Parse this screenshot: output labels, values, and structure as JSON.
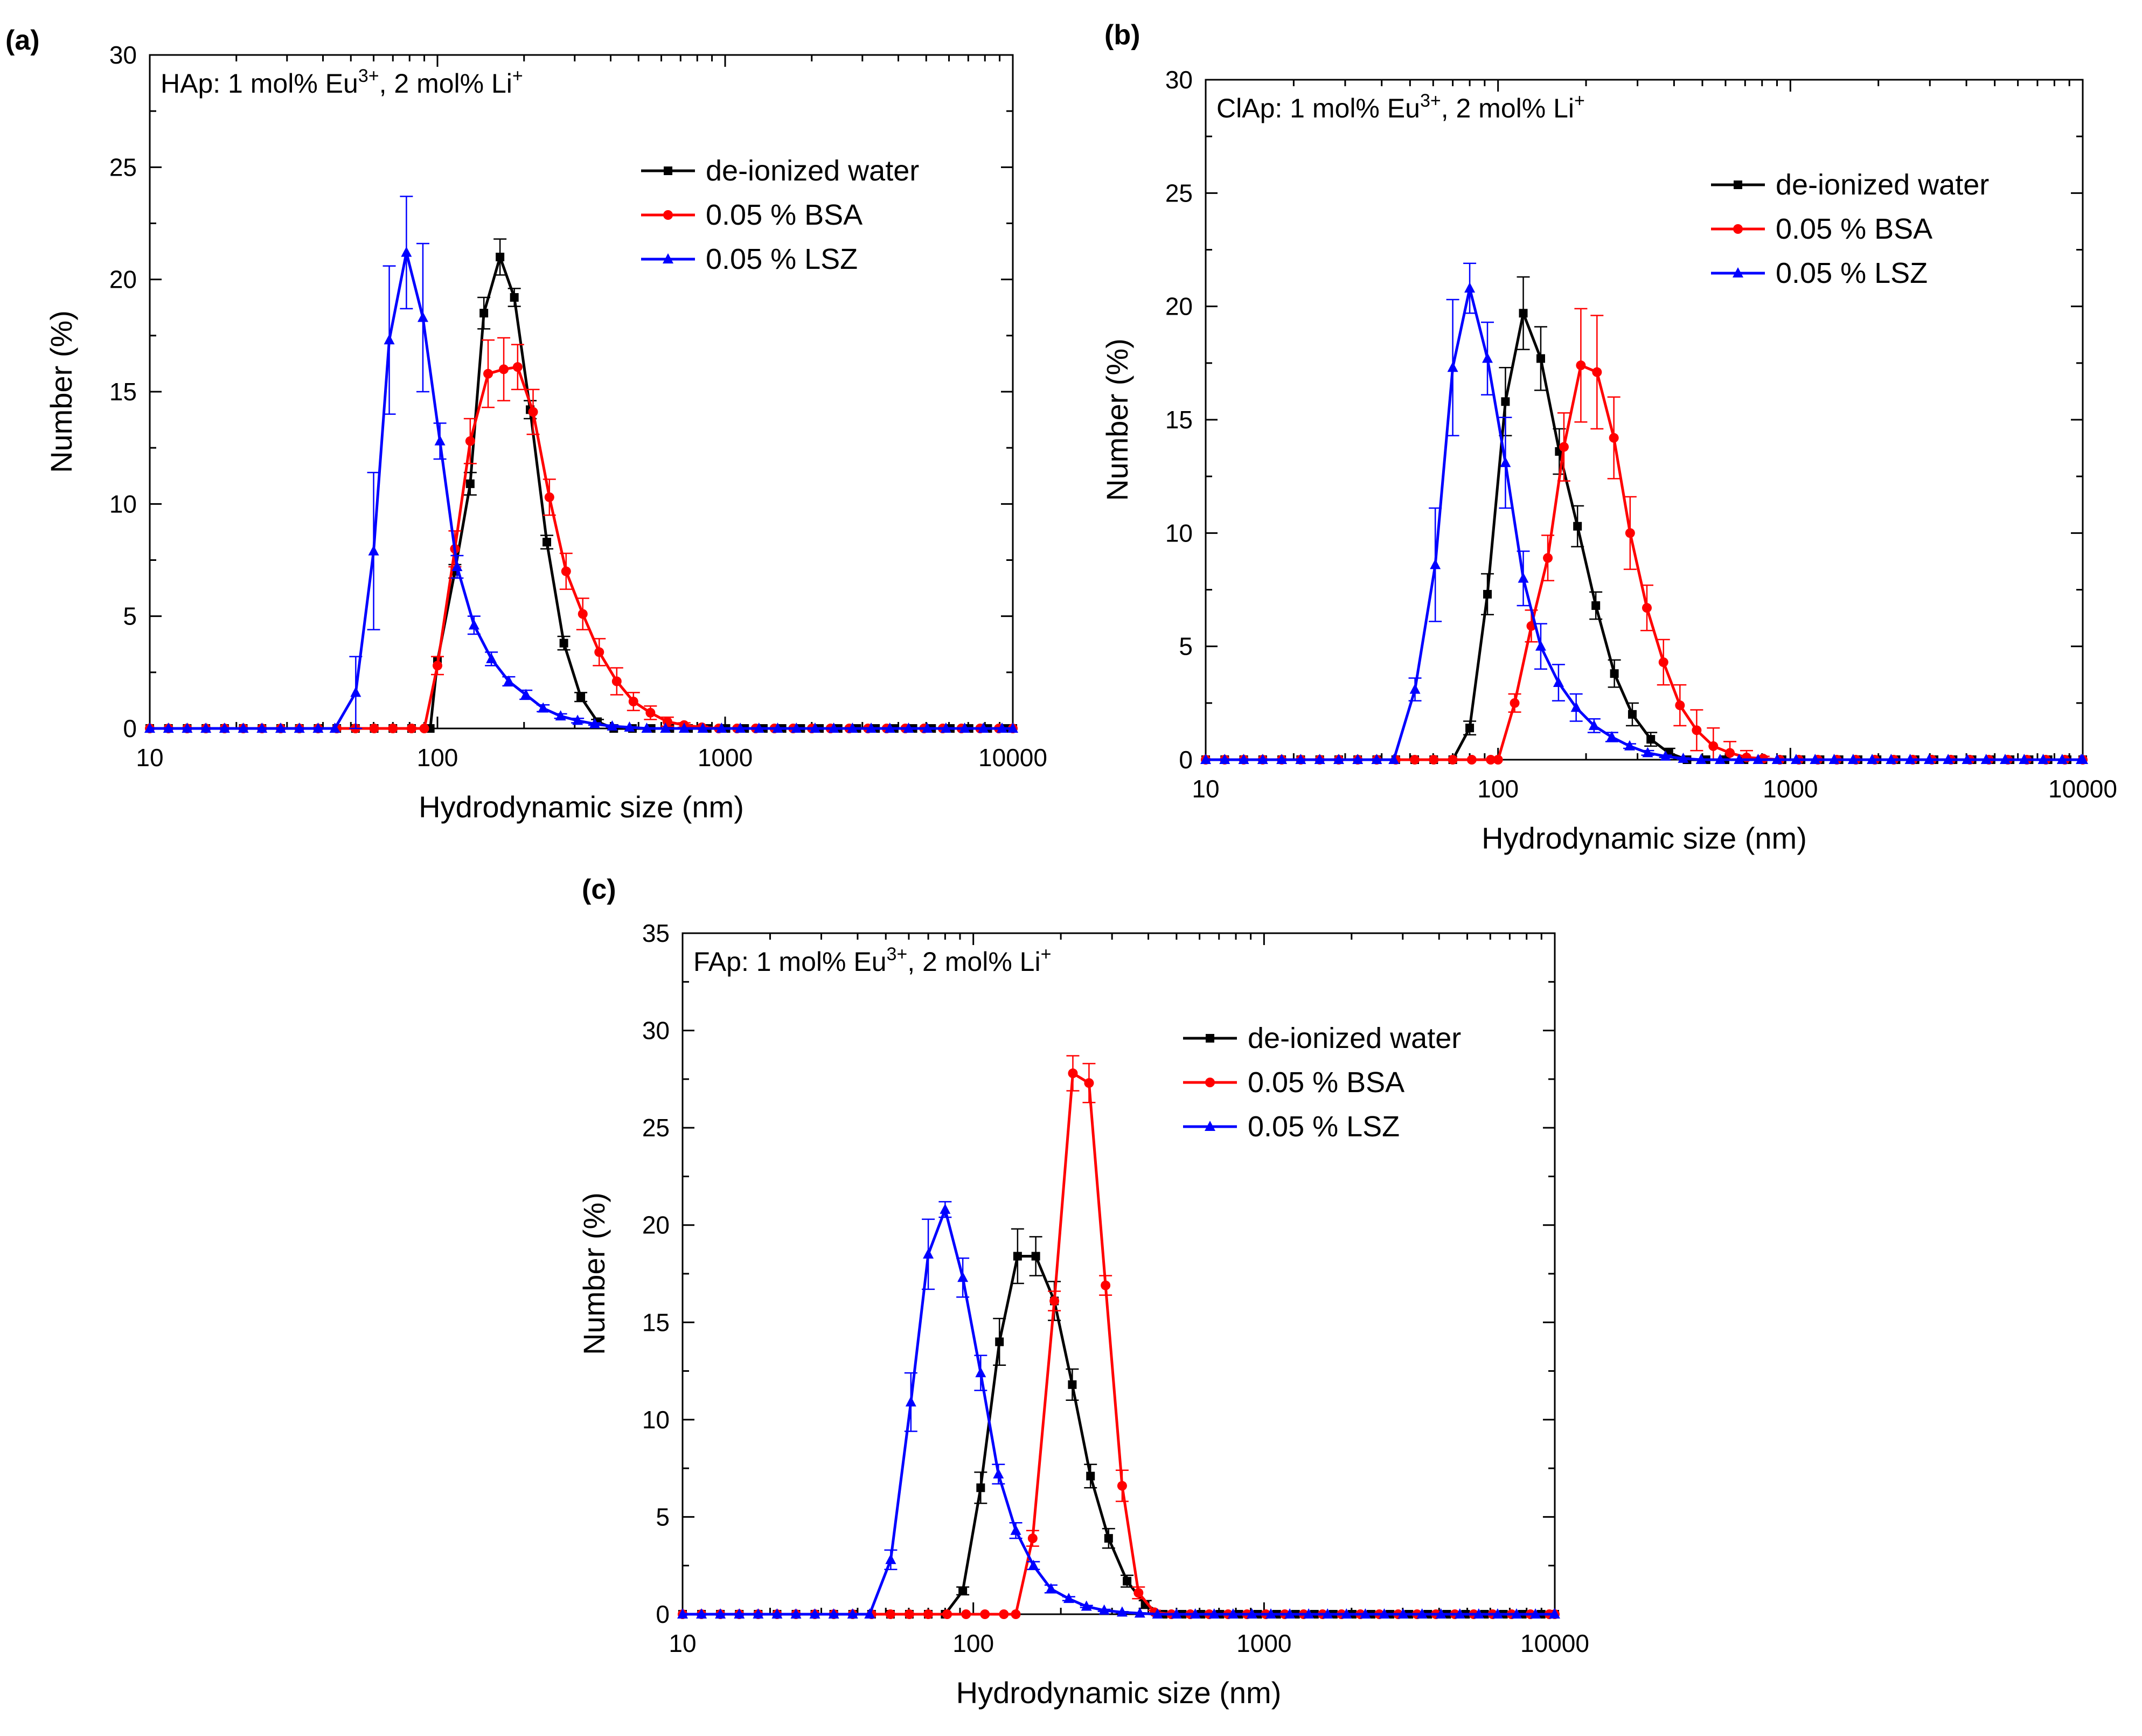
{
  "figure": {
    "legend": [
      {
        "label": "de-ionized water",
        "color": "#000000",
        "marker": "square"
      },
      {
        "label": "0.05 % BSA",
        "color": "#ff0000",
        "marker": "circle"
      },
      {
        "label": "0.05 % LSZ",
        "color": "#0000ff",
        "marker": "triangle"
      }
    ]
  },
  "chart_data": [
    {
      "id": "a",
      "panel_label": "(a)",
      "type": "line",
      "annotation": {
        "prefix": "HAp: 1 mol% Eu",
        "sup1": "3+",
        "mid": ", 2 mol% Li",
        "sup2": "+"
      },
      "xlabel": "Hydrodynamic size (nm)",
      "ylabel": "Number (%)",
      "xscale": "log",
      "xlim": [
        10,
        10000
      ],
      "ylim": [
        0,
        30
      ],
      "xticks": [
        10,
        100,
        1000,
        10000
      ],
      "yticks": [
        0,
        5,
        10,
        15,
        20,
        25,
        30
      ],
      "legend_position": "top-right",
      "series": [
        {
          "name": "de-ionized water",
          "color": "#000000",
          "marker": "square",
          "x": [
            100,
            115,
            130,
            145,
            165,
            185,
            210,
            240,
            275,
            315,
            360,
            410
          ],
          "y": [
            3,
            7,
            10.9,
            18.5,
            21,
            19.2,
            14.2,
            8.3,
            3.8,
            1.4,
            0.3,
            0
          ]
        },
        {
          "name": "0.05 % BSA",
          "color": "#ff0000",
          "marker": "circle",
          "x": [
            90,
            100,
            115,
            130,
            150,
            170,
            190,
            215,
            245,
            280,
            320,
            365,
            420,
            480,
            550,
            630,
            720,
            830,
            950,
            1100
          ],
          "y": [
            0,
            2.8,
            8,
            12.8,
            15.8,
            16,
            16.1,
            14.1,
            10.3,
            7,
            5.1,
            3.4,
            2.1,
            1.2,
            0.7,
            0.3,
            0.15,
            0.05,
            0,
            0
          ]
        },
        {
          "name": "0.05 % LSZ",
          "color": "#0000ff",
          "marker": "triangle",
          "x": [
            44,
            52,
            60,
            68,
            78,
            89,
            102,
            117,
            134,
            154,
            177,
            203,
            233,
            268,
            307,
            352,
            405,
            465,
            534
          ],
          "y": [
            0,
            1.6,
            7.9,
            17.3,
            21.2,
            18.3,
            12.8,
            7.2,
            4.6,
            3.1,
            2.1,
            1.5,
            0.9,
            0.55,
            0.35,
            0.2,
            0.1,
            0.05,
            0
          ]
        }
      ],
      "error_bars": {
        "de-ionized water": [
          0,
          0.3,
          0.5,
          0.7,
          0.8,
          0.4,
          0.4,
          0.3,
          0.3,
          0.2,
          0.1,
          0
        ],
        "0.05 % BSA": [
          0,
          0.4,
          0.8,
          1.0,
          1.5,
          1.4,
          1.0,
          1.0,
          0.8,
          0.8,
          0.7,
          0.6,
          0.6,
          0.4,
          0.3,
          0.2,
          0.1,
          0.05,
          0,
          0
        ],
        "0.05 % LSZ": [
          0,
          1.6,
          3.5,
          3.3,
          2.5,
          3.3,
          0.8,
          0.5,
          0.4,
          0.3,
          0.2,
          0.2,
          0.15,
          0.1,
          0.1,
          0.05,
          0.05,
          0.02,
          0
        ]
      }
    },
    {
      "id": "b",
      "panel_label": "(b)",
      "type": "line",
      "annotation": {
        "prefix": "ClAp: 1 mol% Eu",
        "sup1": "3+",
        "mid": ", 2 mol% Li",
        "sup2": "+"
      },
      "xlabel": "Hydrodynamic size (nm)",
      "ylabel": "Number (%)",
      "xscale": "log",
      "xlim": [
        10,
        10000
      ],
      "ylim": [
        0,
        30
      ],
      "xticks": [
        10,
        100,
        1000,
        10000
      ],
      "yticks": [
        0,
        5,
        10,
        15,
        20,
        25,
        30
      ],
      "legend_position": "top-right",
      "series": [
        {
          "name": "de-ionized water",
          "color": "#000000",
          "marker": "square",
          "x": [
            70,
            80,
            92,
            106,
            122,
            140,
            162,
            187,
            216,
            250,
            288,
            333,
            384,
            443
          ],
          "y": [
            0,
            1.4,
            7.3,
            15.8,
            19.7,
            17.7,
            13.6,
            10.3,
            6.8,
            3.8,
            2.0,
            0.9,
            0.3,
            0
          ]
        },
        {
          "name": "0.05 % BSA",
          "color": "#ff0000",
          "marker": "circle",
          "x": [
            100,
            114,
            130,
            148,
            168,
            192,
            218,
            249,
            283,
            323,
            368,
            419,
            478,
            545,
            621,
            708,
            807,
            920
          ],
          "y": [
            0,
            2.5,
            5.9,
            8.9,
            13.8,
            17.4,
            17.1,
            14.2,
            10.0,
            6.7,
            4.3,
            2.4,
            1.3,
            0.6,
            0.3,
            0.1,
            0.05,
            0
          ]
        },
        {
          "name": "0.05 % LSZ",
          "color": "#0000ff",
          "marker": "triangle",
          "x": [
            44,
            52,
            61,
            70,
            80,
            92,
            106,
            122,
            140,
            161,
            185,
            213,
            245,
            282,
            325,
            374,
            430,
            495
          ],
          "y": [
            0,
            3.1,
            8.6,
            17.3,
            20.8,
            17.7,
            13.1,
            8.0,
            5.0,
            3.4,
            2.3,
            1.5,
            1.0,
            0.6,
            0.3,
            0.15,
            0.05,
            0
          ]
        }
      ],
      "error_bars": {
        "de-ionized water": [
          0,
          0.3,
          0.9,
          1.5,
          1.6,
          1.4,
          1.0,
          0.9,
          0.6,
          0.6,
          0.5,
          0.3,
          0.2,
          0
        ],
        "0.05 % BSA": [
          0,
          0.4,
          0.7,
          1.0,
          1.5,
          2.5,
          2.5,
          1.8,
          1.6,
          1.0,
          1.0,
          0.9,
          0.9,
          0.8,
          0.5,
          0.3,
          0.1,
          0
        ],
        "0.05 % LSZ": [
          0,
          0.5,
          2.5,
          3.0,
          1.1,
          1.6,
          2.0,
          1.2,
          1.0,
          0.8,
          0.6,
          0.3,
          0.2,
          0.1,
          0.1,
          0.05,
          0.03,
          0
        ]
      }
    },
    {
      "id": "c",
      "panel_label": "(c)",
      "type": "line",
      "annotation": {
        "prefix": "FAp: 1 mol% Eu",
        "sup1": "3+",
        "mid": ", 2 mol% Li",
        "sup2": "+"
      },
      "xlabel": "Hydrodynamic size (nm)",
      "ylabel": "Number (%)",
      "xscale": "log",
      "xlim": [
        10,
        10000
      ],
      "ylim": [
        0,
        35
      ],
      "xticks": [
        10,
        100,
        1000,
        10000
      ],
      "yticks": [
        0,
        5,
        10,
        15,
        20,
        25,
        30,
        35
      ],
      "legend_position": "top-right",
      "series": [
        {
          "name": "de-ionized water",
          "color": "#000000",
          "marker": "square",
          "x": [
            80,
            92,
            106,
            123,
            142,
            164,
            190,
            219,
            253,
            292,
            338,
            390,
            450
          ],
          "y": [
            0,
            1.2,
            6.5,
            14.0,
            18.4,
            18.4,
            16.1,
            11.8,
            7.1,
            3.9,
            1.7,
            0.5,
            0
          ]
        },
        {
          "name": "0.05 % BSA",
          "color": "#ff0000",
          "marker": "circle",
          "x": [
            140,
            160,
            190,
            220,
            250,
            285,
            325,
            370,
            420,
            480
          ],
          "y": [
            0,
            3.9,
            16.1,
            27.8,
            27.3,
            16.9,
            6.6,
            1.1,
            0.1,
            0
          ]
        },
        {
          "name": "0.05 % LSZ",
          "color": "#0000ff",
          "marker": "triangle",
          "x": [
            44,
            52,
            61,
            70,
            80,
            92,
            106,
            122,
            140,
            161,
            185,
            213,
            245,
            282,
            325,
            374,
            430
          ],
          "y": [
            0,
            2.8,
            10.9,
            18.5,
            20.8,
            17.3,
            12.4,
            7.2,
            4.3,
            2.5,
            1.3,
            0.8,
            0.4,
            0.2,
            0.1,
            0.05,
            0
          ]
        }
      ],
      "error_bars": {
        "de-ionized water": [
          0,
          0.2,
          0.8,
          1.2,
          1.4,
          1.0,
          1.0,
          0.8,
          0.6,
          0.5,
          0.3,
          0.2,
          0
        ],
        "0.05 % BSA": [
          0,
          0.4,
          0.5,
          0.9,
          1.0,
          0.5,
          0.8,
          0.3,
          0.1,
          0
        ],
        "0.05 % LSZ": [
          0,
          0.5,
          1.5,
          1.8,
          0.4,
          1.0,
          0.9,
          0.5,
          0.4,
          0.2,
          0.2,
          0.1,
          0.05,
          0.05,
          0.03,
          0.02,
          0
        ]
      }
    }
  ]
}
